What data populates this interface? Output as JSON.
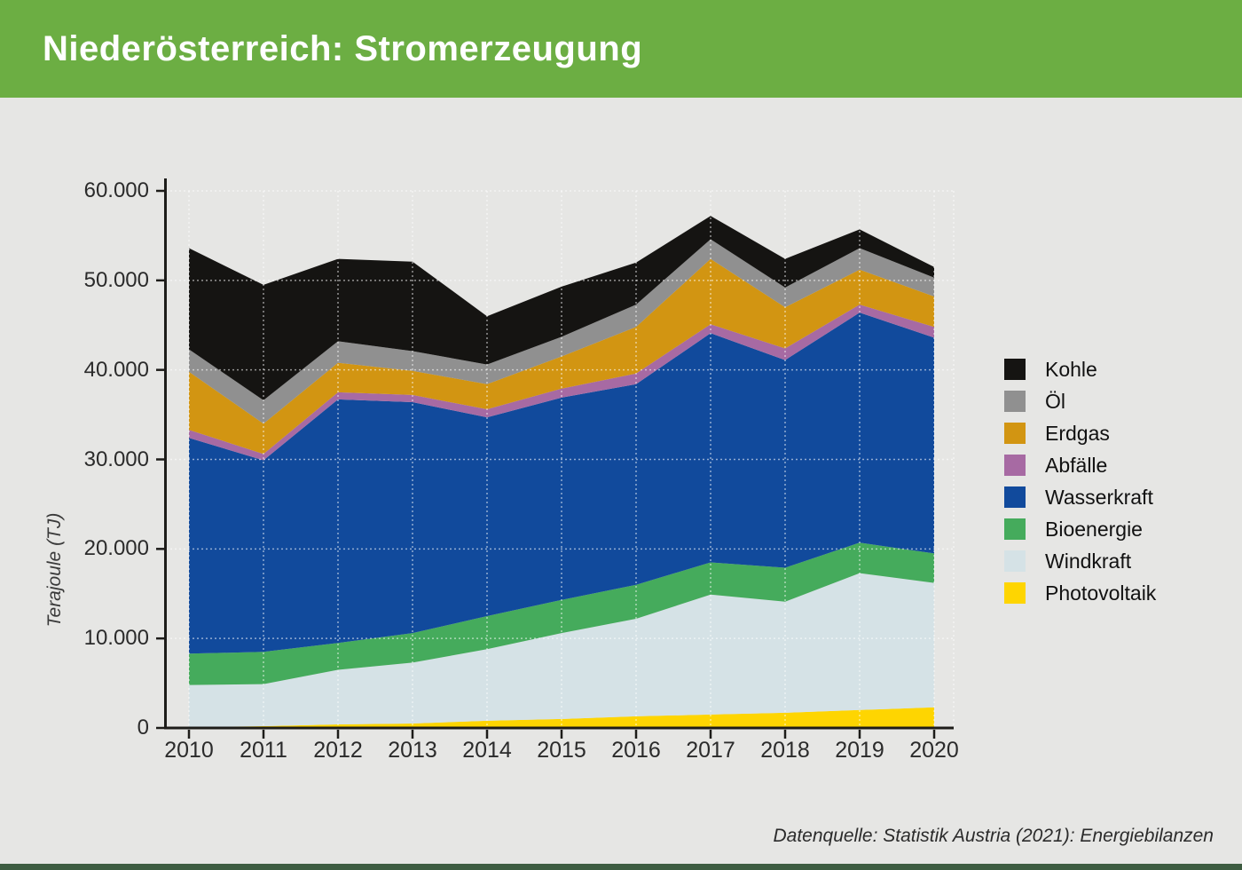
{
  "header": {
    "title": "Niederösterreich: Stromerzeugung"
  },
  "footer": {
    "source": "Datenquelle: Statistik Austria (2021): Energiebilanzen"
  },
  "colors": {
    "header_bg": "#6cae43",
    "page_bg": "#e6e6e4",
    "bottom_bar": "#3d5c41",
    "axis": "#1d1c19",
    "tick_text": "#2b2b2b",
    "gridline": "rgba(255,255,255,0.55)"
  },
  "chart_data": {
    "type": "area",
    "stacked": true,
    "title": "Niederösterreich: Stromerzeugung",
    "xlabel": "",
    "ylabel": "Terajoule (TJ)",
    "unit": "TJ",
    "ylim": [
      0,
      60000
    ],
    "ytick_step": 10000,
    "ytick_labels": [
      "0",
      "10.000",
      "20.000",
      "30.000",
      "40.000",
      "50.000",
      "60.000"
    ],
    "x": [
      2010,
      2011,
      2012,
      2013,
      2014,
      2015,
      2016,
      2017,
      2018,
      2019,
      2020
    ],
    "grid": "white dashed horizontal and vertical on plot",
    "legend_position": "right",
    "series": [
      {
        "name": "Kohle",
        "color": "#151412",
        "values": [
          11300,
          12900,
          9200,
          10000,
          5400,
          5600,
          4700,
          2600,
          3200,
          2100,
          1200
        ]
      },
      {
        "name": "Öl",
        "color": "#909090",
        "values": [
          2500,
          2600,
          2400,
          2200,
          2200,
          2200,
          2500,
          2200,
          2200,
          2400,
          2100
        ]
      },
      {
        "name": "Erdgas",
        "color": "#d29512",
        "values": [
          6500,
          3400,
          3300,
          2700,
          2800,
          3600,
          5200,
          7300,
          4600,
          3900,
          3400
        ]
      },
      {
        "name": "Abfälle",
        "color": "#a76aa3",
        "values": [
          900,
          700,
          800,
          800,
          900,
          1000,
          1200,
          1000,
          1300,
          900,
          1200
        ]
      },
      {
        "name": "Wasserkraft",
        "color": "#114a9c",
        "values": [
          24100,
          21400,
          27200,
          25800,
          22200,
          22600,
          22400,
          25600,
          23200,
          25700,
          24100
        ]
      },
      {
        "name": "Bioenergie",
        "color": "#45ab5c",
        "values": [
          3500,
          3600,
          3000,
          3300,
          3700,
          3700,
          3800,
          3600,
          3800,
          3400,
          3300
        ]
      },
      {
        "name": "Windkraft",
        "color": "#d5e2e6",
        "values": [
          4700,
          4700,
          6100,
          6800,
          8000,
          9600,
          10900,
          13400,
          12400,
          15300,
          13900
        ]
      },
      {
        "name": "Photovoltaik",
        "color": "#fed501",
        "values": [
          100,
          200,
          400,
          500,
          800,
          1000,
          1300,
          1500,
          1700,
          2000,
          2300
        ]
      }
    ]
  }
}
